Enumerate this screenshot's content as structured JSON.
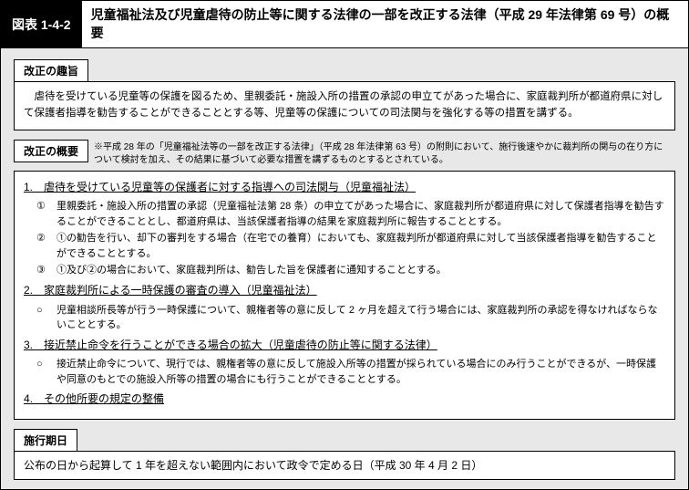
{
  "header": {
    "figure_label": "図表 1-4-2",
    "title": "児童福祉法及び児童虐待の防止等に関する法律の一部を改正する法律（平成 29 年法律第 69 号）の概要"
  },
  "purpose": {
    "label": "改正の趣旨",
    "text": "虐待を受けている児童等の保護を図るため、里親委託・施設入所の措置の承認の申立てがあった場合に、家庭裁判所が都道府県に対して保護者指導を勧告することができることとする等、児童等の保護についての司法関与を強化する等の措置を講ずる。"
  },
  "overview": {
    "label": "改正の概要",
    "note": "※平成 28 年の「児童福祉法等の一部を改正する法律」（平成 28 年法律第 63 号）の附則において、施行後速やかに裁判所の関与の在り方について検討を加え、その結果に基づいて必要な措置を講ずるものとするとされている。",
    "h1": "1.　虐待を受けている児童等の保護者に対する指導への司法関与（児童福祉法）",
    "i1_mark": "①",
    "i1_text": "里親委託・施設入所の措置の承認（児童福祉法第 28 条）の申立てがあった場合に、家庭裁判所が都道府県に対して保護者指導を勧告することができることとし、都道府県は、当該保護者指導の結果を家庭裁判所に報告することとする。",
    "i2_mark": "②",
    "i2_text": "①の勧告を行い、却下の審判をする場合（在宅での養育）においても、家庭裁判所が都道府県に対して当該保護者指導を勧告することができることとする。",
    "i3_mark": "③",
    "i3_text": "①及び②の場合において、家庭裁判所は、勧告した旨を保護者に通知することとする。",
    "h2": "2.　家庭裁判所による一時保護の審査の導入（児童福祉法）",
    "i4_mark": "○",
    "i4_text": "児童相談所長等が行う一時保護について、親権者等の意に反して 2 ヶ月を超えて行う場合には、家庭裁判所の承認を得なければならないこととする。",
    "h3": "3.　接近禁止命令を行うことができる場合の拡大（児童虐待の防止等に関する法律）",
    "i5_mark": "○",
    "i5_text": "接近禁止命令について、現行では、親権者等の意に反して施設入所等の措置が採られている場合にのみ行うことができるが、一時保護や同意のもとでの施設入所等の措置の場合にも行うことができることとする。",
    "h4": "4.　その他所要の規定の整備"
  },
  "effective": {
    "label": "施行期日",
    "text": "公布の日から起算して 1 年を超えない範囲内において政令で定める日（平成 30 年 4 月 2 日）"
  }
}
